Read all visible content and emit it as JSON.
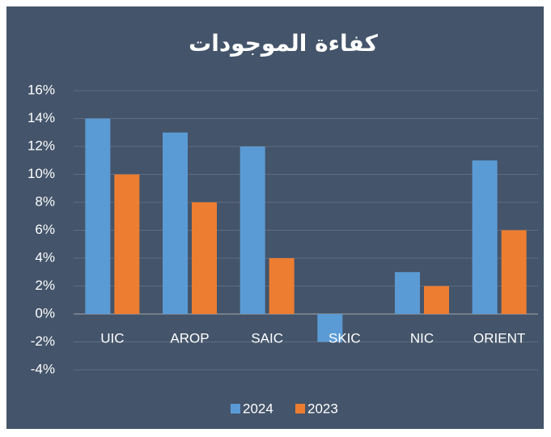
{
  "chart_data": {
    "type": "bar",
    "title": "كفاءة الموجودات",
    "categories": [
      "UIC",
      "AROP",
      "SAIC",
      "SKIC",
      "NIC",
      "ORIENT"
    ],
    "series": [
      {
        "name": "2024",
        "color": "#5b9bd5",
        "values": [
          14,
          13,
          12,
          -2,
          3,
          11
        ]
      },
      {
        "name": "2023",
        "color": "#ed7d31",
        "values": [
          10,
          8,
          4,
          0,
          2,
          6
        ]
      }
    ],
    "ylim": [
      -4,
      16
    ],
    "yticks": [
      {
        "value": -4,
        "label": "-4%"
      },
      {
        "value": -2,
        "label": "-2%"
      },
      {
        "value": 0,
        "label": "0%"
      },
      {
        "value": 2,
        "label": "2%"
      },
      {
        "value": 4,
        "label": "4%"
      },
      {
        "value": 6,
        "label": "6%"
      },
      {
        "value": 8,
        "label": "8%"
      },
      {
        "value": 10,
        "label": "10%"
      },
      {
        "value": 12,
        "label": "12%"
      },
      {
        "value": 14,
        "label": "14%"
      },
      {
        "value": 16,
        "label": "16%"
      }
    ],
    "grid": true,
    "legend": "bottom"
  }
}
